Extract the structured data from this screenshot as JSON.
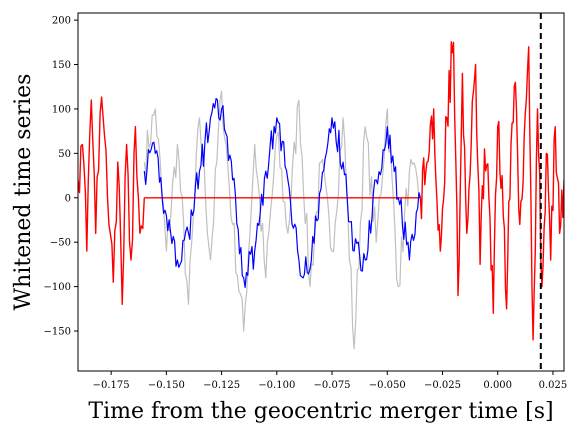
{
  "chart_data": {
    "type": "line",
    "xlabel": "Time from the geocentric merger time [s]",
    "ylabel": "Whitened time series",
    "xlim": [
      -0.19,
      0.03
    ],
    "ylim": [
      -195,
      208
    ],
    "x_ticks": [
      -0.175,
      -0.15,
      -0.125,
      -0.1,
      -0.075,
      -0.05,
      -0.025,
      0.0,
      0.025
    ],
    "x_tick_labels": [
      "−0.175",
      "−0.150",
      "−0.125",
      "−0.100",
      "−0.075",
      "−0.050",
      "−0.025",
      "0.000",
      "0.025"
    ],
    "y_ticks": [
      -150,
      -100,
      -50,
      0,
      50,
      100,
      150,
      200
    ],
    "y_tick_labels": [
      "−150",
      "−100",
      "−50",
      "0",
      "50",
      "100",
      "150",
      "200"
    ],
    "vertical_line_x": 0.0195,
    "gated_window": [
      -0.16,
      -0.035
    ],
    "series": [
      {
        "role": "data-full",
        "color": "#ff0000",
        "x": [
          -0.19,
          -0.188,
          -0.186,
          -0.184,
          -0.182,
          -0.18,
          -0.178,
          -0.176,
          -0.174,
          -0.172,
          -0.17,
          -0.168,
          -0.166,
          -0.164,
          -0.162,
          -0.16,
          -0.035,
          -0.032,
          -0.029,
          -0.026,
          -0.023,
          -0.02,
          -0.018,
          -0.016,
          -0.014,
          -0.012,
          -0.01,
          -0.008,
          -0.006,
          -0.004,
          -0.002,
          0.0,
          0.002,
          0.004,
          0.006,
          0.008,
          0.01,
          0.012,
          0.014,
          0.016,
          0.018,
          0.02,
          0.022,
          0.024,
          0.026,
          0.028,
          0.03
        ],
        "y": [
          20,
          60,
          -60,
          110,
          -40,
          95,
          70,
          -30,
          -95,
          40,
          -120,
          60,
          -70,
          80,
          -40,
          0,
          0,
          40,
          100,
          -60,
          90,
          175,
          -110,
          140,
          -40,
          60,
          150,
          -75,
          55,
          0,
          -130,
          80,
          25,
          -125,
          60,
          130,
          -30,
          70,
          170,
          -160,
          100,
          -100,
          50,
          -70,
          80,
          -40,
          20
        ],
        "gated_x_range": [
          -0.16,
          -0.035
        ],
        "gated_value": 0
      },
      {
        "role": "data-gated-window",
        "color": "#c0c0c0",
        "x": [
          -0.16,
          -0.155,
          -0.15,
          -0.145,
          -0.14,
          -0.135,
          -0.13,
          -0.125,
          -0.12,
          -0.115,
          -0.11,
          -0.105,
          -0.1,
          -0.095,
          -0.09,
          -0.085,
          -0.08,
          -0.075,
          -0.07,
          -0.065,
          -0.06,
          -0.055,
          -0.05,
          -0.045,
          -0.04,
          -0.035
        ],
        "y": [
          40,
          100,
          -60,
          60,
          -120,
          90,
          -70,
          120,
          -30,
          -150,
          60,
          -90,
          70,
          -40,
          110,
          -100,
          40,
          -60,
          90,
          -170,
          80,
          -50,
          100,
          -100,
          30,
          0
        ]
      },
      {
        "role": "inpainted",
        "color": "#0000ff",
        "x": [
          -0.16,
          -0.155,
          -0.15,
          -0.145,
          -0.14,
          -0.135,
          -0.13,
          -0.125,
          -0.12,
          -0.115,
          -0.11,
          -0.105,
          -0.1,
          -0.095,
          -0.09,
          -0.085,
          -0.08,
          -0.075,
          -0.07,
          -0.065,
          -0.06,
          -0.055,
          -0.05,
          -0.045,
          -0.04,
          -0.035
        ],
        "y": [
          30,
          50,
          -20,
          -70,
          -40,
          30,
          90,
          100,
          20,
          -90,
          -60,
          30,
          90,
          20,
          -70,
          -80,
          10,
          90,
          40,
          -60,
          -70,
          20,
          80,
          0,
          -70,
          0
        ]
      }
    ]
  }
}
